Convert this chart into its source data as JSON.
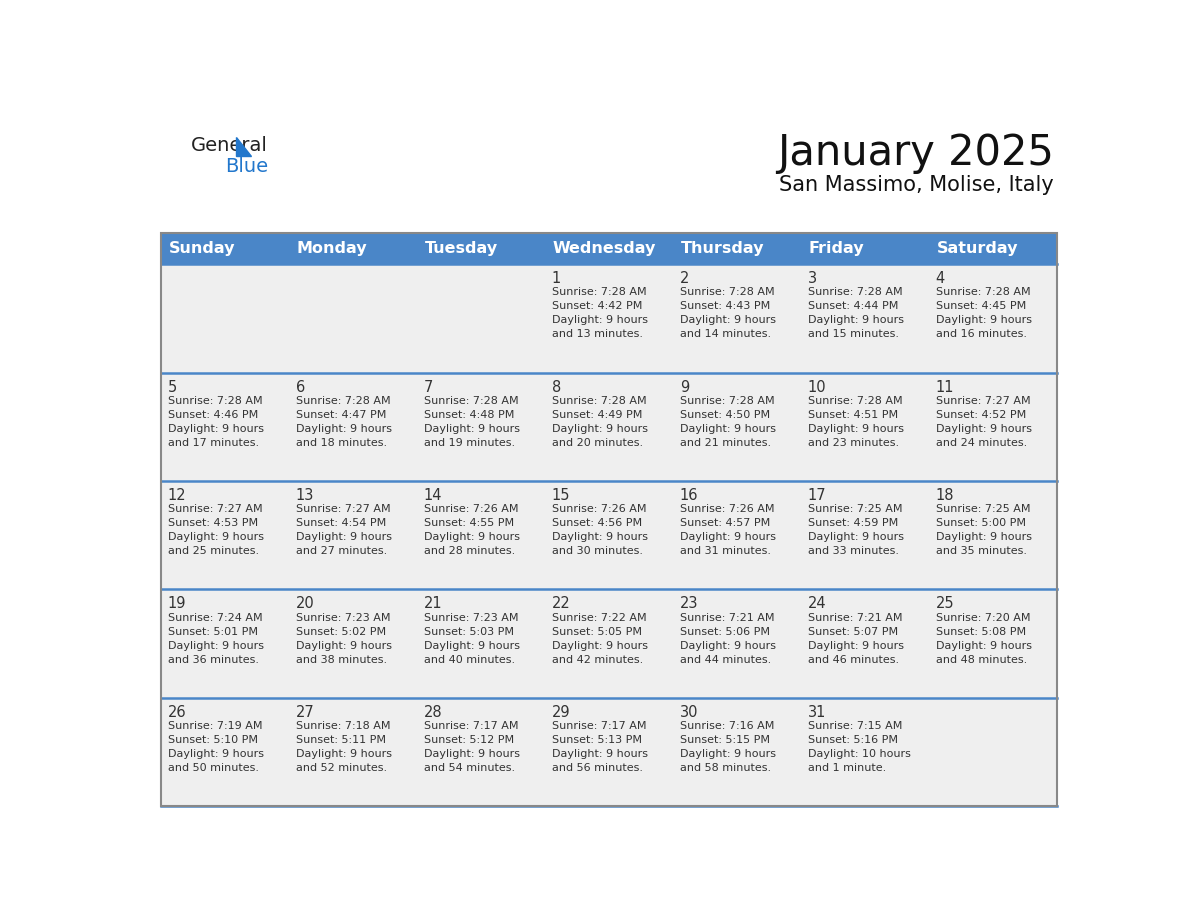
{
  "title": "January 2025",
  "subtitle": "San Massimo, Molise, Italy",
  "header_color": "#4a86c8",
  "header_text_color": "#FFFFFF",
  "days_of_week": [
    "Sunday",
    "Monday",
    "Tuesday",
    "Wednesday",
    "Thursday",
    "Friday",
    "Saturday"
  ],
  "bg_color": "#FFFFFF",
  "row_bg_color": "#EFEFEF",
  "row_separator_color": "#4a86c8",
  "text_color": "#333333",
  "logo_general_color": "#222222",
  "logo_blue_color": "#2277CC",
  "logo_triangle_color": "#2277CC",
  "calendar": [
    [
      {
        "day": "",
        "info": ""
      },
      {
        "day": "",
        "info": ""
      },
      {
        "day": "",
        "info": ""
      },
      {
        "day": "1",
        "info": "Sunrise: 7:28 AM\nSunset: 4:42 PM\nDaylight: 9 hours\nand 13 minutes."
      },
      {
        "day": "2",
        "info": "Sunrise: 7:28 AM\nSunset: 4:43 PM\nDaylight: 9 hours\nand 14 minutes."
      },
      {
        "day": "3",
        "info": "Sunrise: 7:28 AM\nSunset: 4:44 PM\nDaylight: 9 hours\nand 15 minutes."
      },
      {
        "day": "4",
        "info": "Sunrise: 7:28 AM\nSunset: 4:45 PM\nDaylight: 9 hours\nand 16 minutes."
      }
    ],
    [
      {
        "day": "5",
        "info": "Sunrise: 7:28 AM\nSunset: 4:46 PM\nDaylight: 9 hours\nand 17 minutes."
      },
      {
        "day": "6",
        "info": "Sunrise: 7:28 AM\nSunset: 4:47 PM\nDaylight: 9 hours\nand 18 minutes."
      },
      {
        "day": "7",
        "info": "Sunrise: 7:28 AM\nSunset: 4:48 PM\nDaylight: 9 hours\nand 19 minutes."
      },
      {
        "day": "8",
        "info": "Sunrise: 7:28 AM\nSunset: 4:49 PM\nDaylight: 9 hours\nand 20 minutes."
      },
      {
        "day": "9",
        "info": "Sunrise: 7:28 AM\nSunset: 4:50 PM\nDaylight: 9 hours\nand 21 minutes."
      },
      {
        "day": "10",
        "info": "Sunrise: 7:28 AM\nSunset: 4:51 PM\nDaylight: 9 hours\nand 23 minutes."
      },
      {
        "day": "11",
        "info": "Sunrise: 7:27 AM\nSunset: 4:52 PM\nDaylight: 9 hours\nand 24 minutes."
      }
    ],
    [
      {
        "day": "12",
        "info": "Sunrise: 7:27 AM\nSunset: 4:53 PM\nDaylight: 9 hours\nand 25 minutes."
      },
      {
        "day": "13",
        "info": "Sunrise: 7:27 AM\nSunset: 4:54 PM\nDaylight: 9 hours\nand 27 minutes."
      },
      {
        "day": "14",
        "info": "Sunrise: 7:26 AM\nSunset: 4:55 PM\nDaylight: 9 hours\nand 28 minutes."
      },
      {
        "day": "15",
        "info": "Sunrise: 7:26 AM\nSunset: 4:56 PM\nDaylight: 9 hours\nand 30 minutes."
      },
      {
        "day": "16",
        "info": "Sunrise: 7:26 AM\nSunset: 4:57 PM\nDaylight: 9 hours\nand 31 minutes."
      },
      {
        "day": "17",
        "info": "Sunrise: 7:25 AM\nSunset: 4:59 PM\nDaylight: 9 hours\nand 33 minutes."
      },
      {
        "day": "18",
        "info": "Sunrise: 7:25 AM\nSunset: 5:00 PM\nDaylight: 9 hours\nand 35 minutes."
      }
    ],
    [
      {
        "day": "19",
        "info": "Sunrise: 7:24 AM\nSunset: 5:01 PM\nDaylight: 9 hours\nand 36 minutes."
      },
      {
        "day": "20",
        "info": "Sunrise: 7:23 AM\nSunset: 5:02 PM\nDaylight: 9 hours\nand 38 minutes."
      },
      {
        "day": "21",
        "info": "Sunrise: 7:23 AM\nSunset: 5:03 PM\nDaylight: 9 hours\nand 40 minutes."
      },
      {
        "day": "22",
        "info": "Sunrise: 7:22 AM\nSunset: 5:05 PM\nDaylight: 9 hours\nand 42 minutes."
      },
      {
        "day": "23",
        "info": "Sunrise: 7:21 AM\nSunset: 5:06 PM\nDaylight: 9 hours\nand 44 minutes."
      },
      {
        "day": "24",
        "info": "Sunrise: 7:21 AM\nSunset: 5:07 PM\nDaylight: 9 hours\nand 46 minutes."
      },
      {
        "day": "25",
        "info": "Sunrise: 7:20 AM\nSunset: 5:08 PM\nDaylight: 9 hours\nand 48 minutes."
      }
    ],
    [
      {
        "day": "26",
        "info": "Sunrise: 7:19 AM\nSunset: 5:10 PM\nDaylight: 9 hours\nand 50 minutes."
      },
      {
        "day": "27",
        "info": "Sunrise: 7:18 AM\nSunset: 5:11 PM\nDaylight: 9 hours\nand 52 minutes."
      },
      {
        "day": "28",
        "info": "Sunrise: 7:17 AM\nSunset: 5:12 PM\nDaylight: 9 hours\nand 54 minutes."
      },
      {
        "day": "29",
        "info": "Sunrise: 7:17 AM\nSunset: 5:13 PM\nDaylight: 9 hours\nand 56 minutes."
      },
      {
        "day": "30",
        "info": "Sunrise: 7:16 AM\nSunset: 5:15 PM\nDaylight: 9 hours\nand 58 minutes."
      },
      {
        "day": "31",
        "info": "Sunrise: 7:15 AM\nSunset: 5:16 PM\nDaylight: 10 hours\nand 1 minute."
      },
      {
        "day": "",
        "info": ""
      }
    ]
  ]
}
